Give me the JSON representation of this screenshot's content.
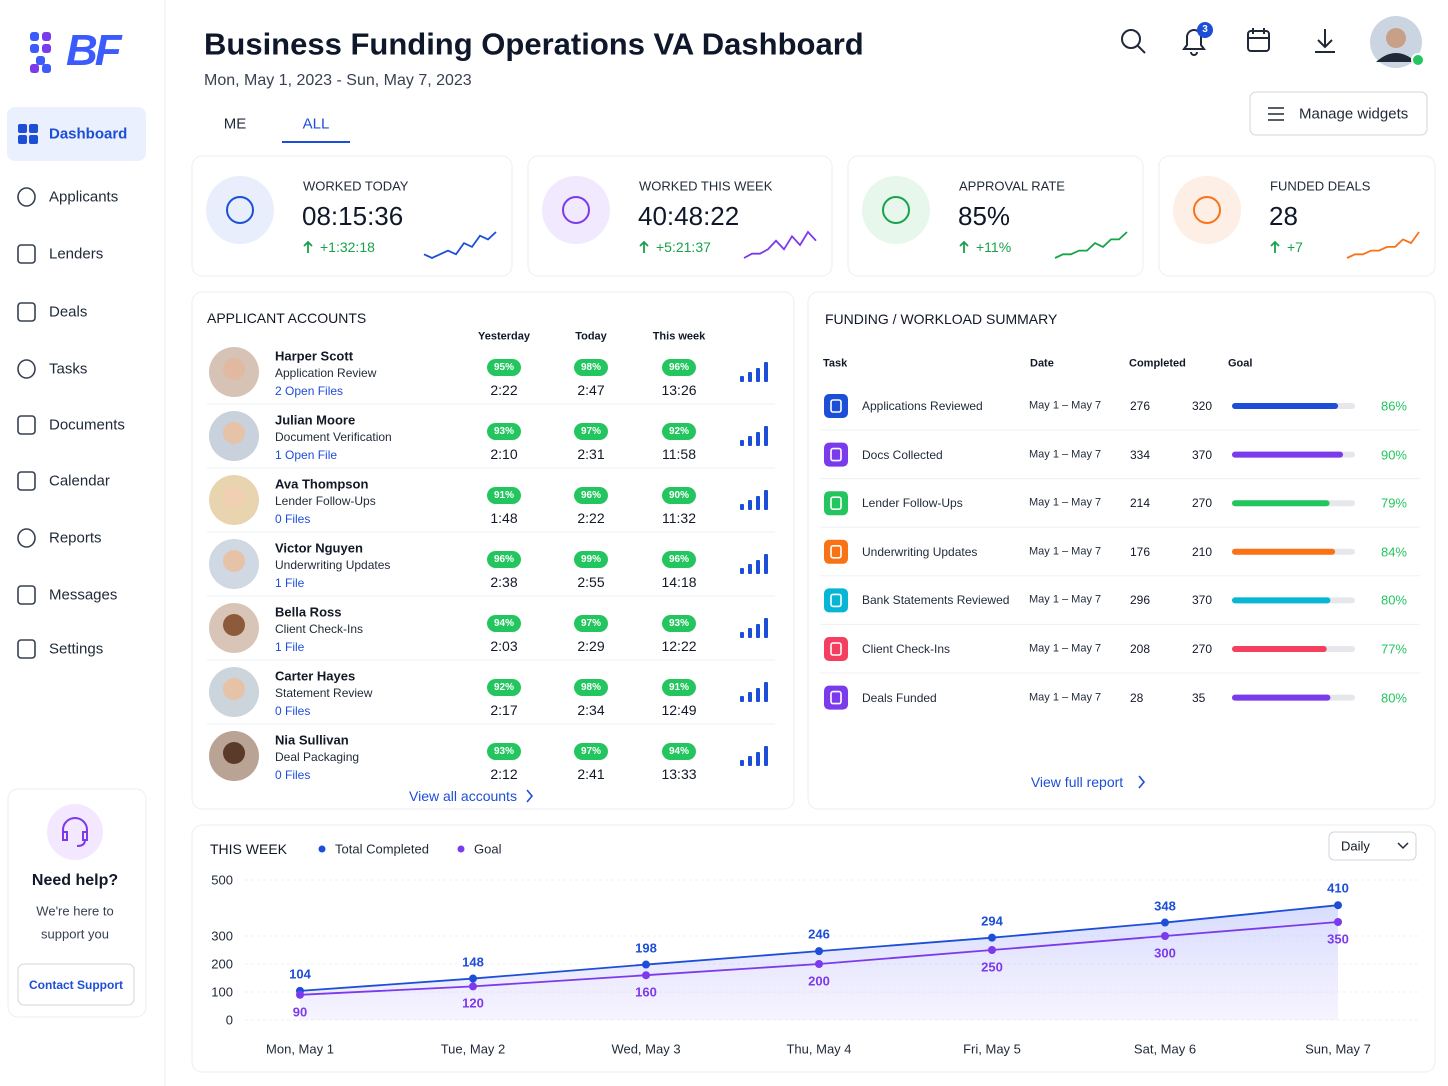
{
  "sidebar": {
    "logo": "BF",
    "nav": [
      "Dashboard",
      "Applicants",
      "Lenders",
      "Deals",
      "Tasks",
      "Documents",
      "Calendar",
      "Reports",
      "Messages",
      "Settings"
    ],
    "help": {
      "title": "Need help?",
      "text": [
        "We're here to",
        "support you"
      ],
      "button": "Contact Support"
    }
  },
  "header": {
    "title": "Business Funding Operations VA Dashboard",
    "date_range": "Mon, May 1, 2023 - Sun, May 7, 2023",
    "tabs": [
      "ME",
      "ALL"
    ],
    "notifications": "3",
    "manage": "Manage widgets"
  },
  "kpis": [
    {
      "label": "WORKED TODAY",
      "value": "08:15:36",
      "delta": "+1:32:18",
      "color": "#1d4ed8",
      "trend": [
        2,
        1,
        2,
        3,
        2,
        5,
        4,
        7,
        6,
        8
      ]
    },
    {
      "label": "WORKED THIS WEEK",
      "value": "40:48:22",
      "delta": "+5:21:37",
      "color": "#7c3aed",
      "trend": [
        1,
        2,
        2,
        3,
        5,
        3,
        6,
        4,
        7,
        5
      ]
    },
    {
      "label": "APPROVAL RATE",
      "value": "85%",
      "delta": "+11%",
      "color": "#16a34a",
      "trend": [
        1,
        2,
        2,
        3,
        3,
        5,
        4,
        6,
        6,
        8
      ]
    },
    {
      "label": "FUNDED DEALS",
      "value": "28",
      "delta": "+7",
      "color": "#f97316",
      "trend": [
        1,
        2,
        2,
        3,
        3,
        4,
        4,
        6,
        5,
        8
      ]
    }
  ],
  "applicants": {
    "title": "APPLICANT ACCOUNTS",
    "columns": [
      "Yesterday",
      "Today",
      "This week"
    ],
    "link": "View all accounts",
    "rows": [
      {
        "name": "Harper Scott",
        "task": "Application Review",
        "files": "2 Open Files",
        "stats": [
          [
            "95%",
            "2:22"
          ],
          [
            "98%",
            "2:47"
          ],
          [
            "96%",
            "13:26"
          ]
        ]
      },
      {
        "name": "Julian Moore",
        "task": "Document Verification",
        "files": "1 Open File",
        "stats": [
          [
            "93%",
            "2:10"
          ],
          [
            "97%",
            "2:31"
          ],
          [
            "92%",
            "11:58"
          ]
        ]
      },
      {
        "name": "Ava Thompson",
        "task": "Lender Follow-Ups",
        "files": "0 Files",
        "stats": [
          [
            "91%",
            "1:48"
          ],
          [
            "96%",
            "2:22"
          ],
          [
            "90%",
            "11:32"
          ]
        ]
      },
      {
        "name": "Victor Nguyen",
        "task": "Underwriting Updates",
        "files": "1 File",
        "stats": [
          [
            "96%",
            "2:38"
          ],
          [
            "99%",
            "2:55"
          ],
          [
            "96%",
            "14:18"
          ]
        ]
      },
      {
        "name": "Bella Ross",
        "task": "Client Check-Ins",
        "files": "1 File",
        "stats": [
          [
            "94%",
            "2:03"
          ],
          [
            "97%",
            "2:29"
          ],
          [
            "93%",
            "12:22"
          ]
        ]
      },
      {
        "name": "Carter Hayes",
        "task": "Statement Review",
        "files": "0 Files",
        "stats": [
          [
            "92%",
            "2:17"
          ],
          [
            "98%",
            "2:34"
          ],
          [
            "91%",
            "12:49"
          ]
        ]
      },
      {
        "name": "Nia Sullivan",
        "task": "Deal Packaging",
        "files": "0 Files",
        "stats": [
          [
            "93%",
            "2:12"
          ],
          [
            "97%",
            "2:41"
          ],
          [
            "94%",
            "13:33"
          ]
        ]
      }
    ]
  },
  "funding": {
    "title": "FUNDING / WORKLOAD SUMMARY",
    "columns": [
      "Task",
      "Date",
      "Completed",
      "Goal"
    ],
    "link": "View full report",
    "rows": [
      {
        "task": "Applications Reviewed",
        "date": "May 1 – May 7",
        "completed": 276,
        "goal": 320,
        "pct": "86%",
        "color": "#1d4ed8"
      },
      {
        "task": "Docs Collected",
        "date": "May 1 – May 7",
        "completed": 334,
        "goal": 370,
        "pct": "90%",
        "color": "#7c3aed"
      },
      {
        "task": "Lender Follow-Ups",
        "date": "May 1 – May 7",
        "completed": 214,
        "goal": 270,
        "pct": "79%",
        "color": "#22c55e"
      },
      {
        "task": "Underwriting Updates",
        "date": "May 1 – May 7",
        "completed": 176,
        "goal": 210,
        "pct": "84%",
        "color": "#f97316"
      },
      {
        "task": "Bank Statements Reviewed",
        "date": "May 1 – May 7",
        "completed": 296,
        "goal": 370,
        "pct": "80%",
        "color": "#06b6d4"
      },
      {
        "task": "Client Check-Ins",
        "date": "May 1 – May 7",
        "completed": 208,
        "goal": 270,
        "pct": "77%",
        "color": "#f43f5e"
      },
      {
        "task": "Deals Funded",
        "date": "May 1 – May 7",
        "completed": 28,
        "goal": 35,
        "pct": "80%",
        "color": "#7c3aed"
      }
    ]
  },
  "chart_data": {
    "type": "line",
    "title": "THIS WEEK",
    "control": "Daily",
    "categories": [
      "Mon, May 1",
      "Tue, May 2",
      "Wed, May 3",
      "Thu, May 4",
      "Fri, May 5",
      "Sat, May 6",
      "Sun, May 7"
    ],
    "series": [
      {
        "name": "Total Completed",
        "color": "#1d4ed8",
        "values": [
          104,
          148,
          198,
          246,
          294,
          348,
          410
        ]
      },
      {
        "name": "Goal",
        "color": "#7c3aed",
        "values": [
          90,
          120,
          160,
          200,
          250,
          300,
          350
        ]
      }
    ],
    "ylim": [
      0,
      500
    ],
    "yticks": [
      0,
      100,
      200,
      300,
      500
    ],
    "grid": true
  }
}
